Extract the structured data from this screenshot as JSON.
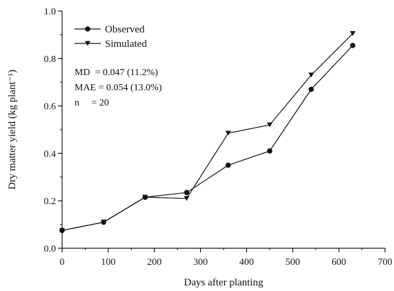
{
  "chart_data": {
    "type": "line",
    "xlabel": "Days after planting",
    "ylabel": "Dry matter yield (kg plant⁻¹)",
    "xlim": [
      0,
      700
    ],
    "ylim": [
      0.0,
      1.0
    ],
    "xticks": [
      "0",
      "100",
      "200",
      "300",
      "400",
      "500",
      "600",
      "700"
    ],
    "yticks": [
      "0.0",
      "0.2",
      "0.4",
      "0.6",
      "0.8",
      "1.0"
    ],
    "grid": false,
    "legend_position": "top-left",
    "series": [
      {
        "name": "Observed",
        "marker": "circle",
        "x": [
          0,
          90,
          180,
          270,
          360,
          450,
          540,
          630
        ],
        "y": [
          0.075,
          0.11,
          0.215,
          0.235,
          0.35,
          0.41,
          0.67,
          0.855
        ]
      },
      {
        "name": "Simulated",
        "marker": "triangle-down",
        "x": [
          0,
          90,
          180,
          270,
          360,
          450,
          540,
          630
        ],
        "y": [
          0.075,
          0.11,
          0.215,
          0.21,
          0.485,
          0.52,
          0.73,
          0.905
        ]
      }
    ],
    "annotations": [
      "MD  = 0.047 (11.2%)",
      "MAE = 0.054 (13.0%)",
      "n     = 20"
    ]
  }
}
